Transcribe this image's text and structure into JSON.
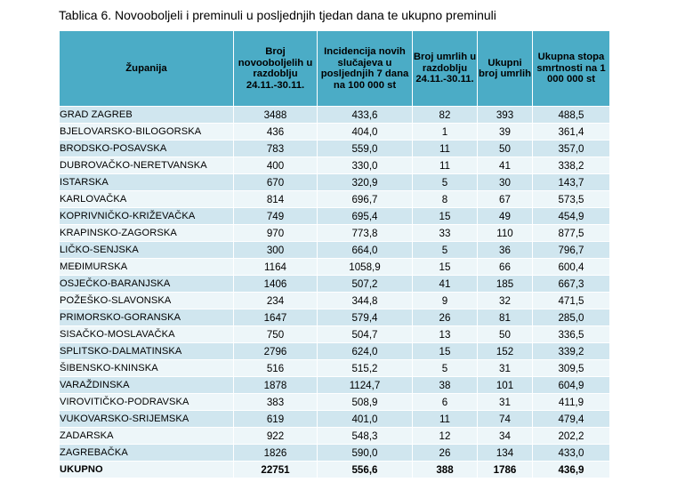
{
  "caption": "Tablica 6. Novooboljeli i preminuli u posljednjih tjedan dana te ukupno preminuli",
  "headers": {
    "county": "Županija",
    "new_cases": "Broj novooboljelih u razdoblju 24.11.-30.11.",
    "incidence": "Incidencija novih slučajeva u posljednjih 7 dana na 100 000 st",
    "deaths_period": "Broj umrlih u razdoblju 24.11.-30.11.",
    "total_deaths": "Ukupni broj umrlih",
    "mortality_rate": "Ukupna stopa smrtnosti na 1 000 000 st"
  },
  "rows": [
    {
      "county": "GRAD ZAGREB",
      "new_cases": "3488",
      "incidence": "433,6",
      "deaths_period": "82",
      "total_deaths": "393",
      "mortality_rate": "488,5"
    },
    {
      "county": "BJELOVARSKO-BILOGORSKA",
      "new_cases": "436",
      "incidence": "404,0",
      "deaths_period": "1",
      "total_deaths": "39",
      "mortality_rate": "361,4"
    },
    {
      "county": "BRODSKO-POSAVSKA",
      "new_cases": "783",
      "incidence": "559,0",
      "deaths_period": "11",
      "total_deaths": "50",
      "mortality_rate": "357,0"
    },
    {
      "county": "DUBROVAČKO-NERETVANSKA",
      "new_cases": "400",
      "incidence": "330,0",
      "deaths_period": "11",
      "total_deaths": "41",
      "mortality_rate": "338,2"
    },
    {
      "county": "ISTARSKA",
      "new_cases": "670",
      "incidence": "320,9",
      "deaths_period": "5",
      "total_deaths": "30",
      "mortality_rate": "143,7"
    },
    {
      "county": "KARLOVAČKA",
      "new_cases": "814",
      "incidence": "696,7",
      "deaths_period": "8",
      "total_deaths": "67",
      "mortality_rate": "573,5"
    },
    {
      "county": "KOPRIVNIČKO-KRIŽEVAČKA",
      "new_cases": "749",
      "incidence": "695,4",
      "deaths_period": "15",
      "total_deaths": "49",
      "mortality_rate": "454,9"
    },
    {
      "county": "KRAPINSKO-ZAGORSKA",
      "new_cases": "970",
      "incidence": "773,8",
      "deaths_period": "33",
      "total_deaths": "110",
      "mortality_rate": "877,5"
    },
    {
      "county": "LIČKO-SENJSKA",
      "new_cases": "300",
      "incidence": "664,0",
      "deaths_period": "5",
      "total_deaths": "36",
      "mortality_rate": "796,7"
    },
    {
      "county": "MEĐIMURSKA",
      "new_cases": "1164",
      "incidence": "1058,9",
      "deaths_period": "15",
      "total_deaths": "66",
      "mortality_rate": "600,4"
    },
    {
      "county": "OSJEČKO-BARANJSKA",
      "new_cases": "1406",
      "incidence": "507,2",
      "deaths_period": "41",
      "total_deaths": "185",
      "mortality_rate": "667,3"
    },
    {
      "county": "POŽEŠKO-SLAVONSKA",
      "new_cases": "234",
      "incidence": "344,8",
      "deaths_period": "9",
      "total_deaths": "32",
      "mortality_rate": "471,5"
    },
    {
      "county": "PRIMORSKO-GORANSKA",
      "new_cases": "1647",
      "incidence": "579,4",
      "deaths_period": "26",
      "total_deaths": "81",
      "mortality_rate": "285,0"
    },
    {
      "county": "SISAČKO-MOSLAVAČKA",
      "new_cases": "750",
      "incidence": "504,7",
      "deaths_period": "13",
      "total_deaths": "50",
      "mortality_rate": "336,5"
    },
    {
      "county": "SPLITSKO-DALMATINSKA",
      "new_cases": "2796",
      "incidence": "624,0",
      "deaths_period": "15",
      "total_deaths": "152",
      "mortality_rate": "339,2"
    },
    {
      "county": "ŠIBENSKO-KNINSKA",
      "new_cases": "516",
      "incidence": "515,2",
      "deaths_period": "5",
      "total_deaths": "31",
      "mortality_rate": "309,5"
    },
    {
      "county": "VARAŽDINSKA",
      "new_cases": "1878",
      "incidence": "1124,7",
      "deaths_period": "38",
      "total_deaths": "101",
      "mortality_rate": "604,9"
    },
    {
      "county": "VIROVITIČKO-PODRAVSKA",
      "new_cases": "383",
      "incidence": "508,9",
      "deaths_period": "6",
      "total_deaths": "31",
      "mortality_rate": "411,9"
    },
    {
      "county": "VUKOVARSKO-SRIJEMSKA",
      "new_cases": "619",
      "incidence": "401,0",
      "deaths_period": "11",
      "total_deaths": "74",
      "mortality_rate": "479,4"
    },
    {
      "county": "ZADARSKA",
      "new_cases": "922",
      "incidence": "548,3",
      "deaths_period": "12",
      "total_deaths": "34",
      "mortality_rate": "202,2"
    },
    {
      "county": "ZAGREBAČKA",
      "new_cases": "1826",
      "incidence": "590,0",
      "deaths_period": "26",
      "total_deaths": "134",
      "mortality_rate": "433,0"
    }
  ],
  "total": {
    "county": "UKUPNO",
    "new_cases": "22751",
    "incidence": "556,6",
    "deaths_period": "388",
    "total_deaths": "1786",
    "mortality_rate": "436,9"
  },
  "colors": {
    "header": "#4bacc6",
    "row_odd": "#d0e6ef",
    "row_even": "#edf6f9"
  }
}
